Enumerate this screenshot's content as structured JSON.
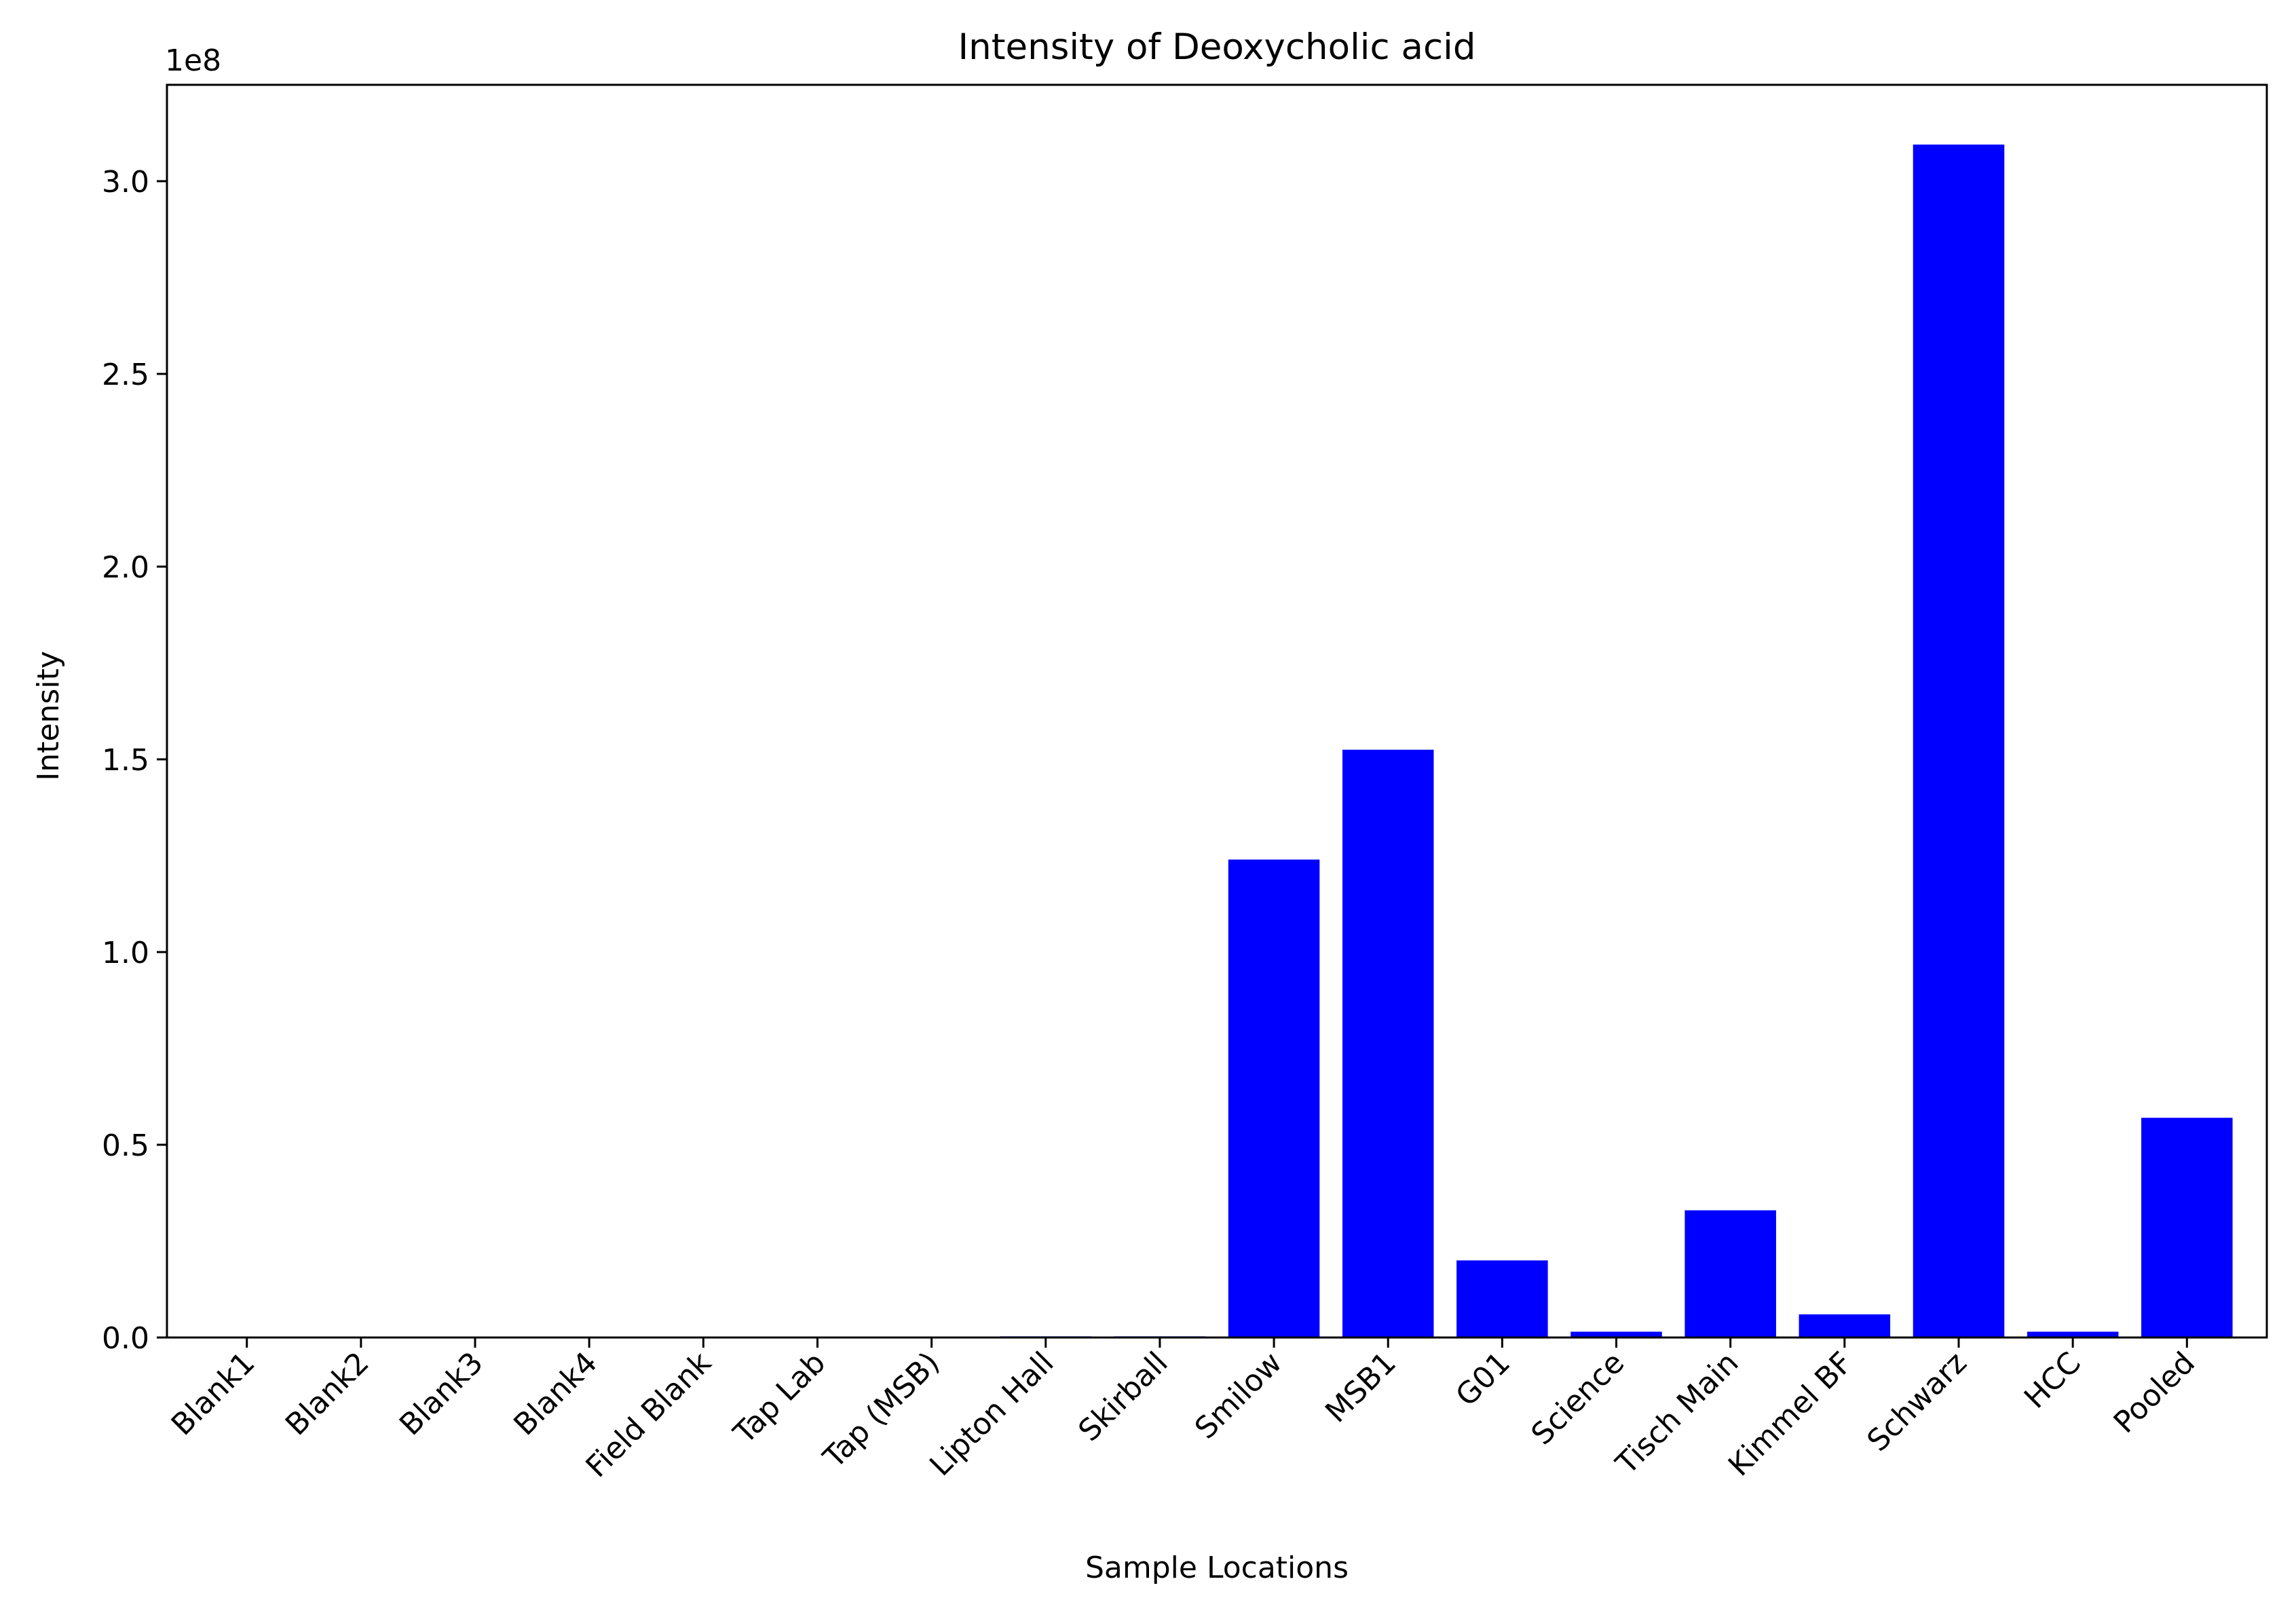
{
  "chart_data": {
    "type": "bar",
    "title": "Intensity of Deoxycholic acid",
    "xlabel": "Sample Locations",
    "ylabel": "Intensity",
    "y_offset_label": "1e8",
    "y_scale": 100000000,
    "ylim": [
      0,
      325000000
    ],
    "yticks": [
      0,
      50000000,
      100000000,
      150000000,
      200000000,
      250000000,
      300000000
    ],
    "ytick_labels": [
      "0.0",
      "0.5",
      "1.0",
      "1.5",
      "2.0",
      "2.5",
      "3.0"
    ],
    "bar_color": "#0000ff",
    "grid": false,
    "legend": "none",
    "categories": [
      "Blank1",
      "Blank2",
      "Blank3",
      "Blank4",
      "Field Blank",
      "Tap Lab",
      "Tap (MSB)",
      "Lipton Hall",
      "Skirball",
      "Smilow",
      "MSB1",
      "G01",
      "Science",
      "Tisch Main",
      "Kimmel BF",
      "Schwarz",
      "HCC",
      "Pooled"
    ],
    "values": [
      0,
      0,
      0,
      0,
      0,
      0,
      0,
      300000,
      300000,
      124000000,
      152500000,
      20000000,
      1500000,
      33000000,
      6000000,
      309500000,
      1500000,
      57000000
    ]
  }
}
